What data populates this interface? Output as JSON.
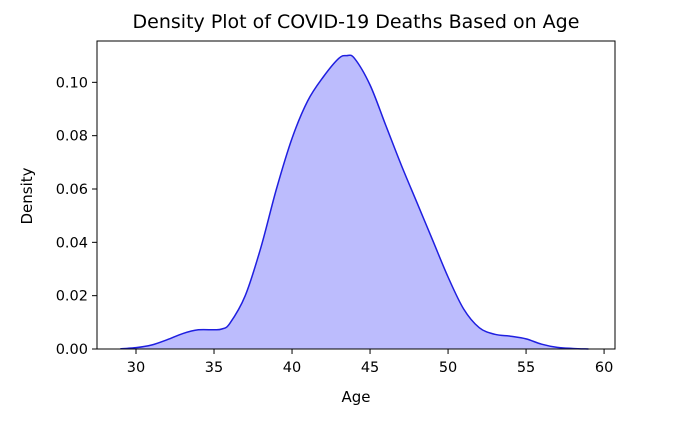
{
  "chart_data": {
    "type": "area",
    "title": "Density Plot of COVID-19 Deaths Based on Age",
    "xlabel": "Age",
    "ylabel": "Density",
    "xlim": [
      27.5,
      60.7
    ],
    "ylim": [
      0,
      0.1155
    ],
    "xticks": [
      30,
      35,
      40,
      45,
      50,
      55,
      60
    ],
    "xtick_labels": [
      "30",
      "35",
      "40",
      "45",
      "50",
      "55",
      "60"
    ],
    "yticks": [
      0.0,
      0.02,
      0.04,
      0.06,
      0.08,
      0.1
    ],
    "ytick_labels": [
      "0.00",
      "0.02",
      "0.04",
      "0.06",
      "0.08",
      "0.10"
    ],
    "grid": false,
    "series": [
      {
        "x": [
          29,
          30,
          31,
          32,
          33,
          34,
          35,
          35.5,
          36,
          37,
          38,
          39,
          40,
          41,
          42,
          43,
          43.5,
          44,
          45,
          46,
          47,
          48,
          49,
          50,
          51,
          52,
          53,
          54,
          55,
          56,
          57,
          58,
          59
        ],
        "y": [
          0.0001,
          0.0005,
          0.0015,
          0.0035,
          0.0058,
          0.0072,
          0.0072,
          0.0075,
          0.0095,
          0.02,
          0.038,
          0.06,
          0.079,
          0.093,
          0.102,
          0.109,
          0.11,
          0.109,
          0.099,
          0.084,
          0.069,
          0.055,
          0.041,
          0.027,
          0.015,
          0.008,
          0.0055,
          0.0048,
          0.0038,
          0.0018,
          0.0006,
          0.0002,
          0.0
        ]
      }
    ],
    "colors": {
      "line": "#1f1fe0",
      "fill": "#bcbcfd"
    }
  }
}
